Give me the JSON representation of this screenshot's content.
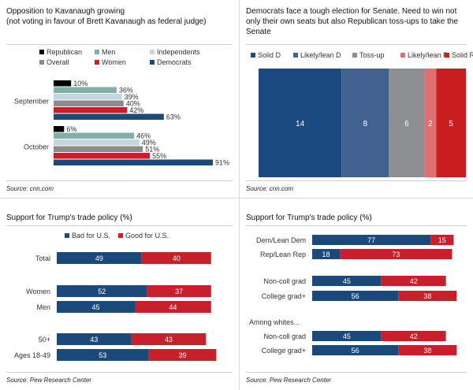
{
  "panels": {
    "kavanaugh": {
      "title": "Opposition to Kavanaugh growing\n(not voting in favour of Brett Kavanaugh as federal judge)",
      "source": "Source: cnn.com"
    },
    "senate": {
      "title": "Democrats face a tough election for Senate. Need to win not only their own seats but also Republican toss-ups to take the Senate",
      "source": "Source: cnn.com"
    },
    "trade_left": {
      "title": "Support for Trump's trade policy (%)",
      "source": "Source: Pew Research Center"
    },
    "trade_right": {
      "title": "Support for Trump's trade policy (%)",
      "source": "Source: Pew Research Center"
    }
  },
  "colors": {
    "republican": "#000000",
    "men": "#7fb0a7",
    "independents": "#c5d5de",
    "overall": "#8c8c8c",
    "women": "#c8202a",
    "democrats": "#1b4a7a",
    "solid_d": "#1a4a80",
    "likely_d": "#41628f",
    "toss_up": "#8d8f93",
    "likely_r": "#e07070",
    "solid_r": "#c81e1e",
    "bad": "#1b4a7a",
    "good": "#c8202a"
  },
  "chart_data": [
    {
      "type": "bar",
      "orientation": "horizontal",
      "categories": [
        "September",
        "October"
      ],
      "series": [
        {
          "name": "Republican",
          "values": [
            10,
            6
          ]
        },
        {
          "name": "Men",
          "values": [
            36,
            46
          ]
        },
        {
          "name": "Independents",
          "values": [
            39,
            49
          ]
        },
        {
          "name": "Overall",
          "values": [
            40,
            51
          ]
        },
        {
          "name": "Women",
          "values": [
            42,
            55
          ]
        },
        {
          "name": "Democrats",
          "values": [
            63,
            91
          ]
        }
      ],
      "value_suffix": "%",
      "legend_position": "top",
      "xlim": [
        0,
        100
      ]
    },
    {
      "type": "bar",
      "orientation": "stacked-100",
      "series": [
        {
          "name": "Solid D",
          "values": [
            14
          ]
        },
        {
          "name": "Likely/lean D",
          "values": [
            8
          ]
        },
        {
          "name": "Toss-up",
          "values": [
            6
          ]
        },
        {
          "name": "Likely/lean R",
          "values": [
            2
          ]
        },
        {
          "name": "Solid R",
          "values": [
            5
          ]
        }
      ],
      "legend_position": "top"
    },
    {
      "type": "bar",
      "orientation": "horizontal-stacked",
      "categories": [
        "Total",
        "Women",
        "Men",
        "50+",
        "Ages 18-49"
      ],
      "series": [
        {
          "name": "Bad for U.S.",
          "values": [
            49,
            52,
            45,
            43,
            53
          ]
        },
        {
          "name": "Good for U.S.",
          "values": [
            40,
            37,
            44,
            43,
            39
          ]
        }
      ],
      "legend_position": "top"
    },
    {
      "type": "bar",
      "orientation": "horizontal-stacked",
      "categories": [
        "Dem/Lean Dem",
        "Rep/Lean Rep",
        "Non-coll grad",
        "College grad+",
        "Non-coll grad",
        "College grad+"
      ],
      "group_heading": "Among whites...",
      "series": [
        {
          "values": [
            77,
            18,
            45,
            56,
            45,
            56
          ]
        },
        {
          "values": [
            15,
            73,
            42,
            38,
            42,
            38
          ]
        }
      ]
    }
  ]
}
